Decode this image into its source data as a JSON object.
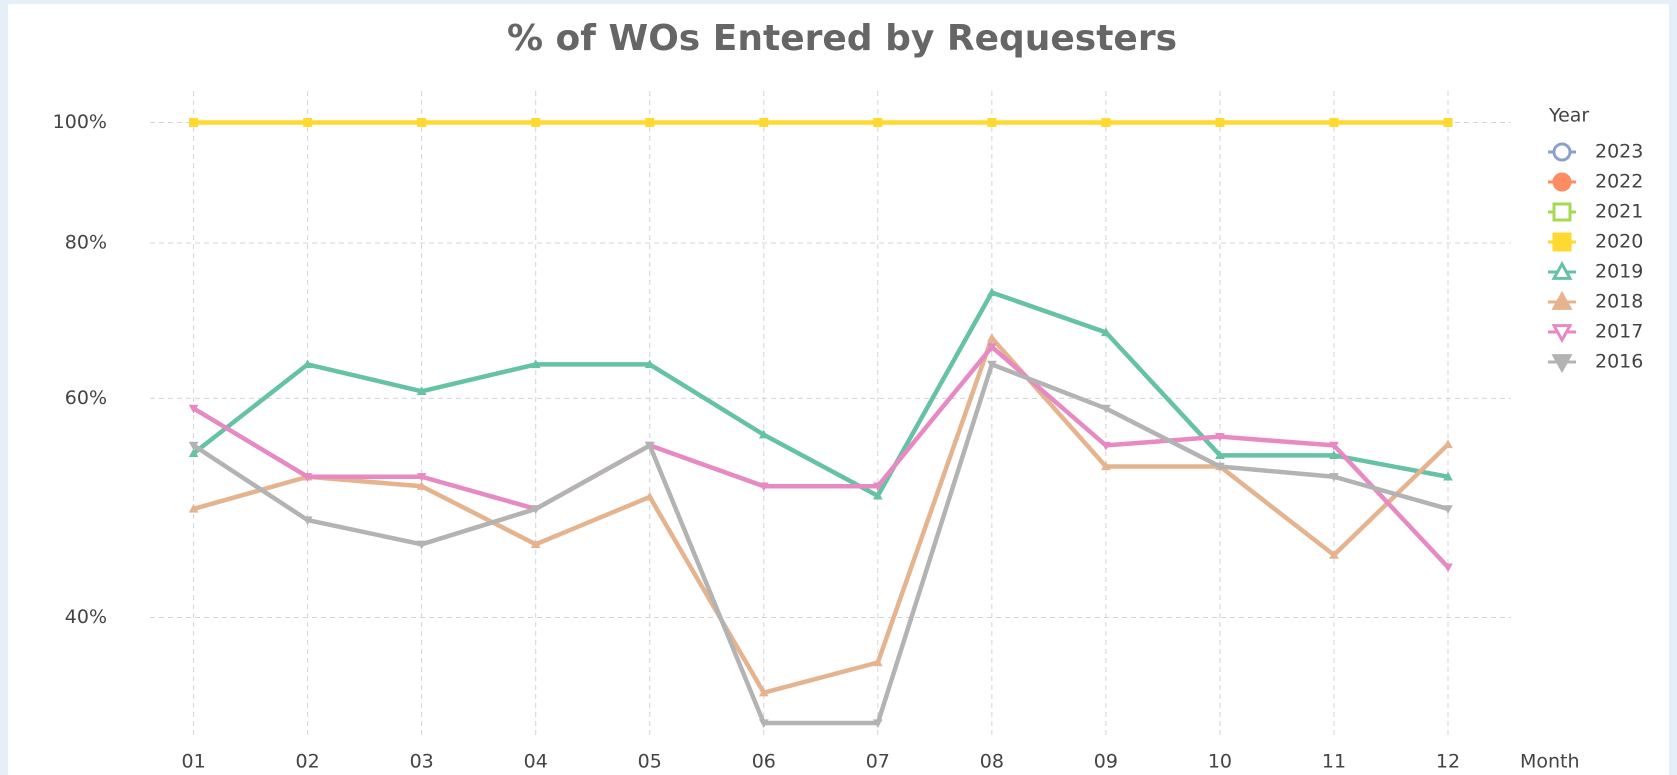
{
  "chart_data": {
    "type": "line",
    "title": "% of WOs Entered by Requesters",
    "x_label": "Month",
    "legend_title": "Year",
    "categories": [
      "01",
      "02",
      "03",
      "04",
      "05",
      "06",
      "07",
      "08",
      "09",
      "10",
      "11",
      "12"
    ],
    "ylim": [
      32,
      106
    ],
    "log_y": true,
    "grid": true,
    "legend": "right",
    "yticks": [
      {
        "value": 40,
        "label": "40%"
      },
      {
        "value": 60,
        "label": "60%"
      },
      {
        "value": 80,
        "label": "80%"
      },
      {
        "value": 100,
        "label": "100%"
      }
    ],
    "series": [
      {
        "name": "2023",
        "color": "#8da0cb",
        "marker": "circle-open",
        "values": [
          null,
          null,
          null,
          null,
          null,
          null,
          null,
          null,
          null,
          null,
          null,
          null
        ]
      },
      {
        "name": "2022",
        "color": "#fc8d62",
        "marker": "circle",
        "values": [
          null,
          null,
          null,
          null,
          null,
          null,
          null,
          null,
          null,
          null,
          null,
          null
        ]
      },
      {
        "name": "2021",
        "color": "#a6d854",
        "marker": "square-open",
        "values": [
          null,
          null,
          null,
          null,
          null,
          null,
          null,
          null,
          null,
          null,
          null,
          null
        ]
      },
      {
        "name": "2020",
        "color": "#ffd92f",
        "marker": "square",
        "values": [
          100,
          100,
          100,
          100,
          100,
          100,
          100,
          100,
          100,
          100,
          100,
          100
        ]
      },
      {
        "name": "2019",
        "color": "#66c2a5",
        "marker": "triangle-open",
        "values": [
          54.2,
          63.9,
          60.8,
          63.9,
          63.9,
          56.1,
          50.1,
          73.0,
          67.8,
          54.0,
          54.0,
          51.9
        ]
      },
      {
        "name": "2018",
        "color": "#e5b48f",
        "marker": "triangle",
        "values": [
          48.9,
          51.9,
          51.0,
          45.8,
          50.0,
          34.8,
          36.8,
          67.1,
          52.9,
          52.9,
          44.9,
          55.1
        ]
      },
      {
        "name": "2017",
        "color": "#e78ac3",
        "marker": "down-open",
        "values": [
          58.9,
          51.9,
          51.9,
          48.9,
          55.0,
          51.0,
          51.0,
          66.0,
          55.0,
          55.9,
          55.0,
          43.9
        ]
      },
      {
        "name": "2016",
        "color": "#b3b3b3",
        "marker": "down",
        "values": [
          55.0,
          47.9,
          45.8,
          48.9,
          55.0,
          32.9,
          32.9,
          63.9,
          58.9,
          52.9,
          51.9,
          48.9
        ]
      }
    ]
  }
}
